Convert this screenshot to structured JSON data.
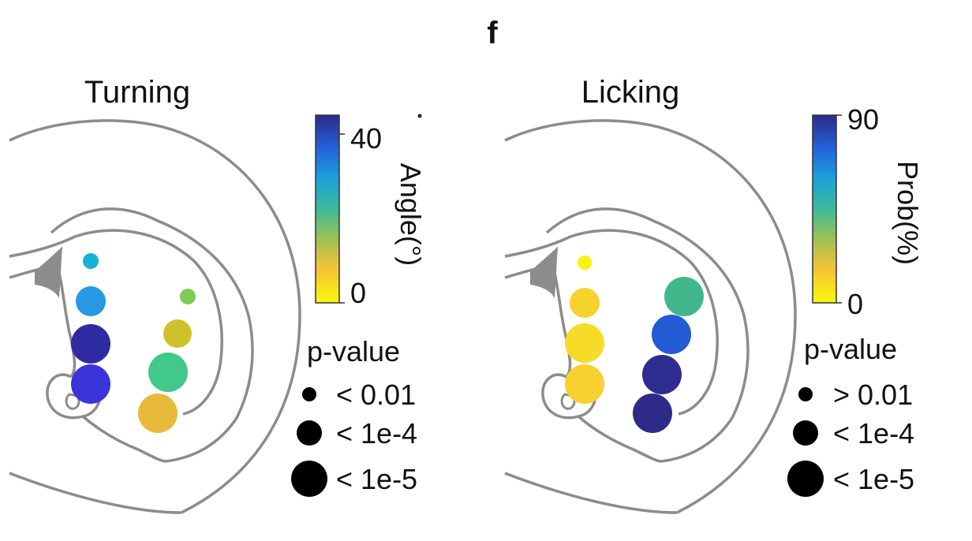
{
  "panel_label": "f",
  "colors": {
    "brain_outline": "#8c8c8c",
    "colormap": [
      "#f9f90e",
      "#f6c234",
      "#92c05a",
      "#3fb89a",
      "#1aa2d8",
      "#2363da",
      "#2e2a8a"
    ]
  },
  "panels": [
    {
      "title": "Turning",
      "colorbar": {
        "label": "Angle(°)",
        "ticks": [
          "40",
          "0"
        ],
        "tick_values": [
          40,
          0
        ],
        "range": [
          0,
          45
        ]
      },
      "legend": {
        "title": "p-value",
        "entries": [
          "< 0.01",
          "< 1e-4",
          "< 1e-5"
        ]
      },
      "sites": [
        {
          "column": "medial",
          "p_class": 0,
          "value": 32,
          "color": "#17b2d9"
        },
        {
          "column": "medial",
          "p_class": 1,
          "value": 36,
          "color": "#2699e2"
        },
        {
          "column": "medial",
          "p_class": 2,
          "value": 46,
          "color": "#2f2ca3"
        },
        {
          "column": "medial",
          "p_class": 2,
          "value": 44,
          "color": "#3b34d8"
        },
        {
          "column": "lateral",
          "p_class": 0,
          "value": 16,
          "color": "#7dcb52"
        },
        {
          "column": "lateral",
          "p_class": 1,
          "value": 6,
          "color": "#cfc12b"
        },
        {
          "column": "lateral",
          "p_class": 2,
          "value": 18,
          "color": "#42c88a"
        },
        {
          "column": "lateral",
          "p_class": 2,
          "value": 5,
          "color": "#e8b93a"
        }
      ]
    },
    {
      "title": "Licking",
      "colorbar": {
        "label": "Prob(%)",
        "ticks": [
          "90",
          "0"
        ],
        "tick_values": [
          90,
          0
        ],
        "range": [
          0,
          90
        ]
      },
      "legend": {
        "title": "p-value",
        "entries": [
          "> 0.01",
          "< 1e-4",
          "< 1e-5"
        ]
      },
      "sites": [
        {
          "column": "medial",
          "p_class": 0,
          "value": 0,
          "color": "#f9f10e"
        },
        {
          "column": "medial",
          "p_class": 1,
          "value": 4,
          "color": "#f6d22c"
        },
        {
          "column": "medial",
          "p_class": 2,
          "value": 3,
          "color": "#f6dc28"
        },
        {
          "column": "medial",
          "p_class": 2,
          "value": 4,
          "color": "#f7d22e"
        },
        {
          "column": "lateral",
          "p_class": 2,
          "value": 45,
          "color": "#42b78c"
        },
        {
          "column": "lateral",
          "p_class": 2,
          "value": 75,
          "color": "#215bd6"
        },
        {
          "column": "lateral",
          "p_class": 2,
          "value": 88,
          "color": "#2f2c8f"
        },
        {
          "column": "lateral",
          "p_class": 2,
          "value": 90,
          "color": "#2e2a8a"
        }
      ]
    }
  ]
}
